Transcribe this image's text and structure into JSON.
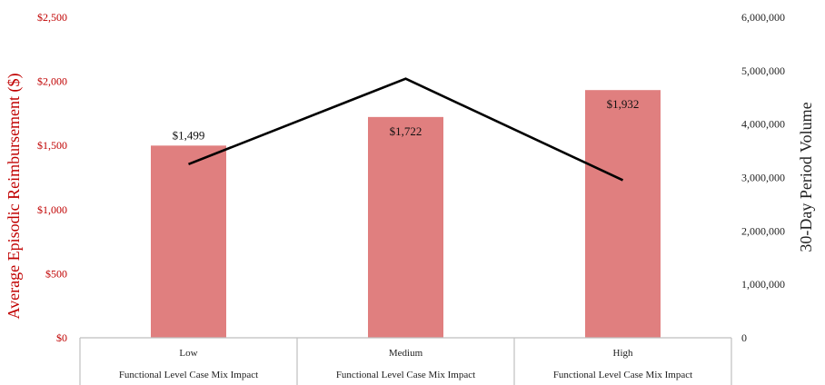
{
  "chart_data": {
    "type": "bar",
    "categories": [
      "Low",
      "Medium",
      "High"
    ],
    "category_sublabel": "Functional Level Case Mix Impact",
    "series": [
      {
        "axis": "left",
        "type": "bar",
        "values": [
          1499,
          1722,
          1932
        ],
        "data_labels": [
          "$1,499",
          "$1,722",
          "$1,932"
        ],
        "color": "#e07f7f"
      },
      {
        "axis": "right",
        "type": "line",
        "values": [
          3250000,
          4850000,
          2950000
        ],
        "color": "#000000"
      }
    ],
    "ylabel": "Average Episodic Reimbursement ($)",
    "y2label": "30-Day Period Volume",
    "ylim": [
      0,
      2500
    ],
    "y2lim": [
      0,
      6000000
    ],
    "yticks": [
      0,
      500,
      1000,
      1500,
      2000,
      2500
    ],
    "ytick_labels": [
      "$0",
      "$500",
      "$1,000",
      "$1,500",
      "$2,000",
      "$2,500"
    ],
    "y2ticks": [
      0,
      1000000,
      2000000,
      3000000,
      4000000,
      5000000,
      6000000
    ],
    "y2tick_labels": [
      "0",
      "1,000,000",
      "2,000,000",
      "3,000,000",
      "4,000,000",
      "5,000,000",
      "6,000,000"
    ],
    "grid": false,
    "left_axis_color": "#c00000",
    "right_axis_color": "#222222",
    "axis_line_color": "#bfbfbf"
  }
}
